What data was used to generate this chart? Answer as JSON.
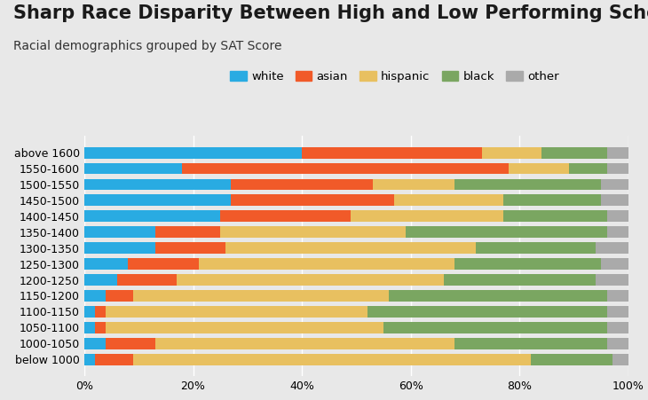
{
  "title": "Sharp Race Disparity Between High and Low Performing Schools",
  "subtitle": "Racial demographics grouped by SAT Score",
  "categories": [
    "above 1600",
    "1550-1600",
    "1500-1550",
    "1450-1500",
    "1400-1450",
    "1350-1400",
    "1300-1350",
    "1250-1300",
    "1200-1250",
    "1150-1200",
    "1100-1150",
    "1050-1100",
    "1000-1050",
    "below 1000"
  ],
  "series": {
    "white": [
      0.4,
      0.18,
      0.27,
      0.27,
      0.25,
      0.13,
      0.13,
      0.08,
      0.06,
      0.04,
      0.02,
      0.02,
      0.04,
      0.02
    ],
    "asian": [
      0.33,
      0.6,
      0.26,
      0.3,
      0.24,
      0.12,
      0.13,
      0.13,
      0.11,
      0.05,
      0.02,
      0.02,
      0.09,
      0.07
    ],
    "hispanic": [
      0.11,
      0.11,
      0.15,
      0.2,
      0.28,
      0.34,
      0.46,
      0.47,
      0.49,
      0.47,
      0.48,
      0.51,
      0.55,
      0.73
    ],
    "black": [
      0.12,
      0.07,
      0.27,
      0.18,
      0.19,
      0.37,
      0.22,
      0.27,
      0.28,
      0.4,
      0.44,
      0.41,
      0.28,
      0.15
    ],
    "other": [
      0.04,
      0.04,
      0.05,
      0.05,
      0.04,
      0.04,
      0.06,
      0.05,
      0.06,
      0.04,
      0.04,
      0.04,
      0.04,
      0.03
    ]
  },
  "colors": {
    "white": "#29ABE2",
    "asian": "#F15A29",
    "hispanic": "#E8C060",
    "black": "#7AA661",
    "other": "#AAAAAA"
  },
  "legend_order": [
    "white",
    "asian",
    "hispanic",
    "black",
    "other"
  ],
  "background_color": "#E8E8E8",
  "title_fontsize": 15,
  "subtitle_fontsize": 10,
  "tick_fontsize": 9
}
